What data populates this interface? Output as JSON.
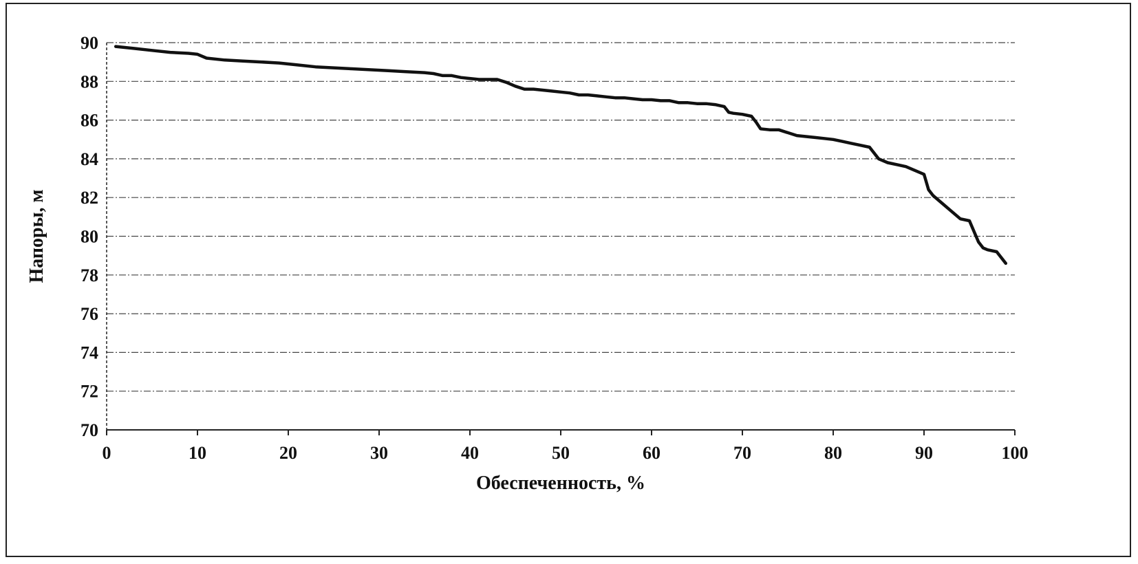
{
  "chart_data": {
    "type": "line",
    "title": "",
    "xlabel": "Обеспеченность, %",
    "ylabel": "Напоры, м",
    "xlim": [
      0,
      100
    ],
    "ylim": [
      70,
      90
    ],
    "x_ticks": [
      "0",
      "10",
      "20",
      "30",
      "40",
      "50",
      "60",
      "70",
      "80",
      "90",
      "100"
    ],
    "y_ticks": [
      "90",
      "88",
      "86",
      "84",
      "82",
      "80",
      "78",
      "76",
      "74",
      "72",
      "70"
    ],
    "grid": true,
    "legend": "none",
    "colors": {
      "line": "#111111",
      "grid": "#444444",
      "axis": "#222222"
    },
    "series": [
      {
        "x": [
          1,
          3,
          5,
          7,
          9,
          10,
          11,
          13,
          15,
          17,
          19,
          21,
          23,
          25,
          27,
          29,
          31,
          33,
          35,
          36,
          37,
          38,
          39,
          40,
          41,
          42,
          43,
          44,
          45,
          46,
          47,
          48,
          49,
          50,
          51,
          52,
          53,
          54,
          55,
          56,
          57,
          58,
          59,
          60,
          61,
          62,
          63,
          64,
          65,
          66,
          67,
          68,
          68.5,
          69,
          70,
          71,
          71.5,
          72,
          73,
          74,
          75,
          76,
          77,
          78,
          79,
          80,
          81,
          82,
          83,
          84,
          85,
          86,
          87,
          88,
          89,
          90,
          90.5,
          91,
          92,
          93,
          94,
          95,
          96,
          96.5,
          97,
          98,
          99
        ],
        "y": [
          89.8,
          89.7,
          89.6,
          89.5,
          89.45,
          89.4,
          89.2,
          89.1,
          89.05,
          89.0,
          88.95,
          88.85,
          88.75,
          88.7,
          88.65,
          88.6,
          88.55,
          88.5,
          88.45,
          88.4,
          88.3,
          88.3,
          88.2,
          88.15,
          88.1,
          88.1,
          88.1,
          87.95,
          87.75,
          87.6,
          87.6,
          87.55,
          87.5,
          87.45,
          87.4,
          87.3,
          87.3,
          87.25,
          87.2,
          87.15,
          87.15,
          87.1,
          87.05,
          87.05,
          87.0,
          87.0,
          86.9,
          86.9,
          86.85,
          86.85,
          86.8,
          86.7,
          86.4,
          86.35,
          86.3,
          86.2,
          85.9,
          85.55,
          85.5,
          85.5,
          85.35,
          85.2,
          85.15,
          85.1,
          85.05,
          85.0,
          84.9,
          84.8,
          84.7,
          84.6,
          84.0,
          83.8,
          83.7,
          83.6,
          83.4,
          83.2,
          82.4,
          82.1,
          81.7,
          81.3,
          80.9,
          80.8,
          79.7,
          79.4,
          79.3,
          79.2,
          78.6
        ]
      }
    ]
  }
}
